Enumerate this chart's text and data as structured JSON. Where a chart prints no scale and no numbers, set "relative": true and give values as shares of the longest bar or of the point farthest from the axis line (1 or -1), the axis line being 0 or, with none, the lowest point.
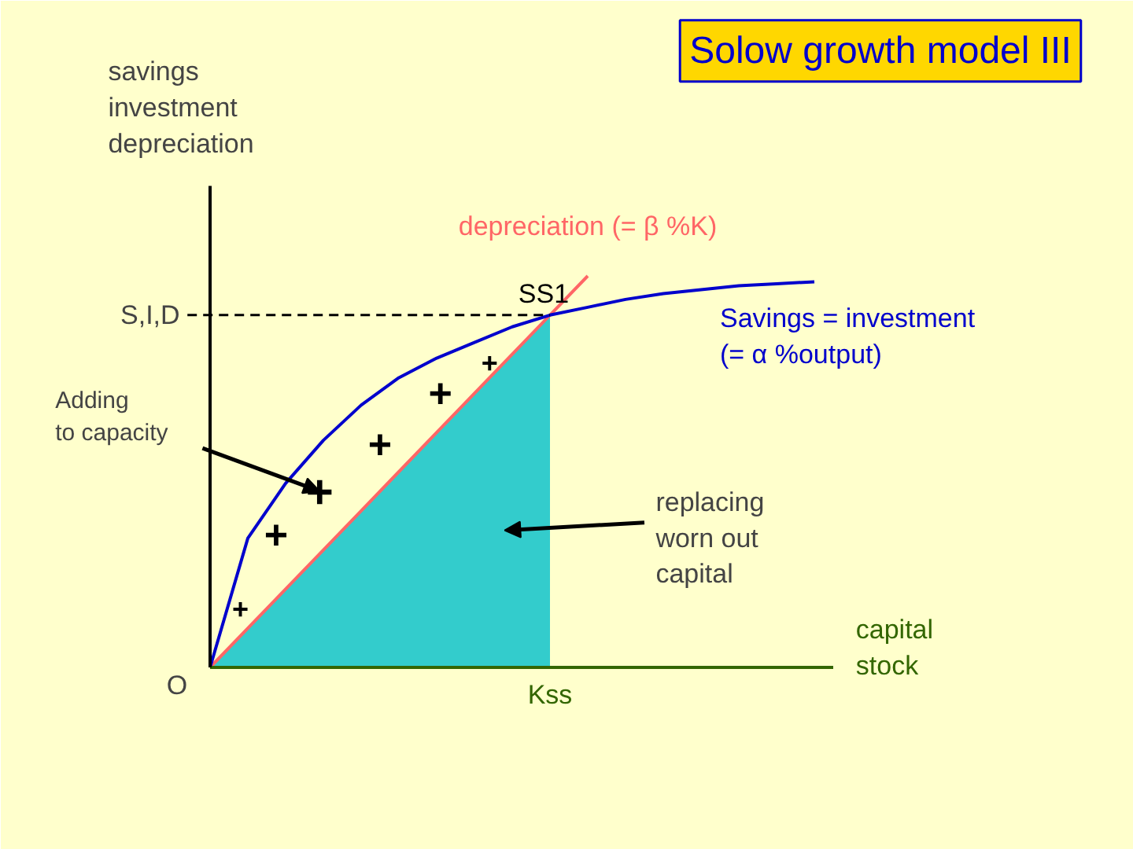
{
  "chart_data": {
    "type": "line",
    "title": "Solow growth model III",
    "relative": true,
    "ylabel": "savings\ninvestment\ndepreciation",
    "xlabel": "capital\nstock",
    "categories": [
      null,
      null,
      null,
      null,
      null,
      null,
      null,
      null,
      null,
      null,
      null,
      null,
      null,
      null,
      null,
      null,
      null
    ],
    "series": [
      {
        "type": "area",
        "color": "#33cccc",
        "values": [
          0,
          0.1,
          0.2,
          0.3,
          0.4,
          0.5,
          0.6,
          0.7,
          0.8,
          0.9,
          null,
          null,
          null,
          null,
          null,
          null,
          null
        ]
      },
      {
        "name": "depreciation (= β %K)",
        "color": "#ff6666",
        "values": [
          0,
          0.1,
          0.2,
          0.3,
          0.4,
          0.5,
          0.6,
          0.7,
          0.8,
          0.9,
          1.0,
          null,
          null,
          null,
          null,
          null,
          null
        ]
      },
      {
        "name": "Savings = investment\n(= α %output)",
        "color": "#0000cc",
        "values": [
          0,
          0.33,
          0.47,
          0.58,
          0.67,
          0.74,
          0.79,
          0.83,
          0.87,
          0.9,
          0.92,
          0.94,
          0.955,
          0.965,
          0.975,
          0.98,
          0.985
        ]
      }
    ],
    "ref_lines": [
      {
        "axis": "y",
        "value": 0.9,
        "label": "S,I,D",
        "line_style": "dashed",
        "color": "#000000"
      }
    ],
    "annotations": [
      "O",
      "SS1",
      "Kss",
      "Adding\nto capacity",
      "replacing\nworn out\ncapital",
      "+",
      "+",
      "+",
      "+",
      "+",
      "+"
    ],
    "grid": false
  }
}
